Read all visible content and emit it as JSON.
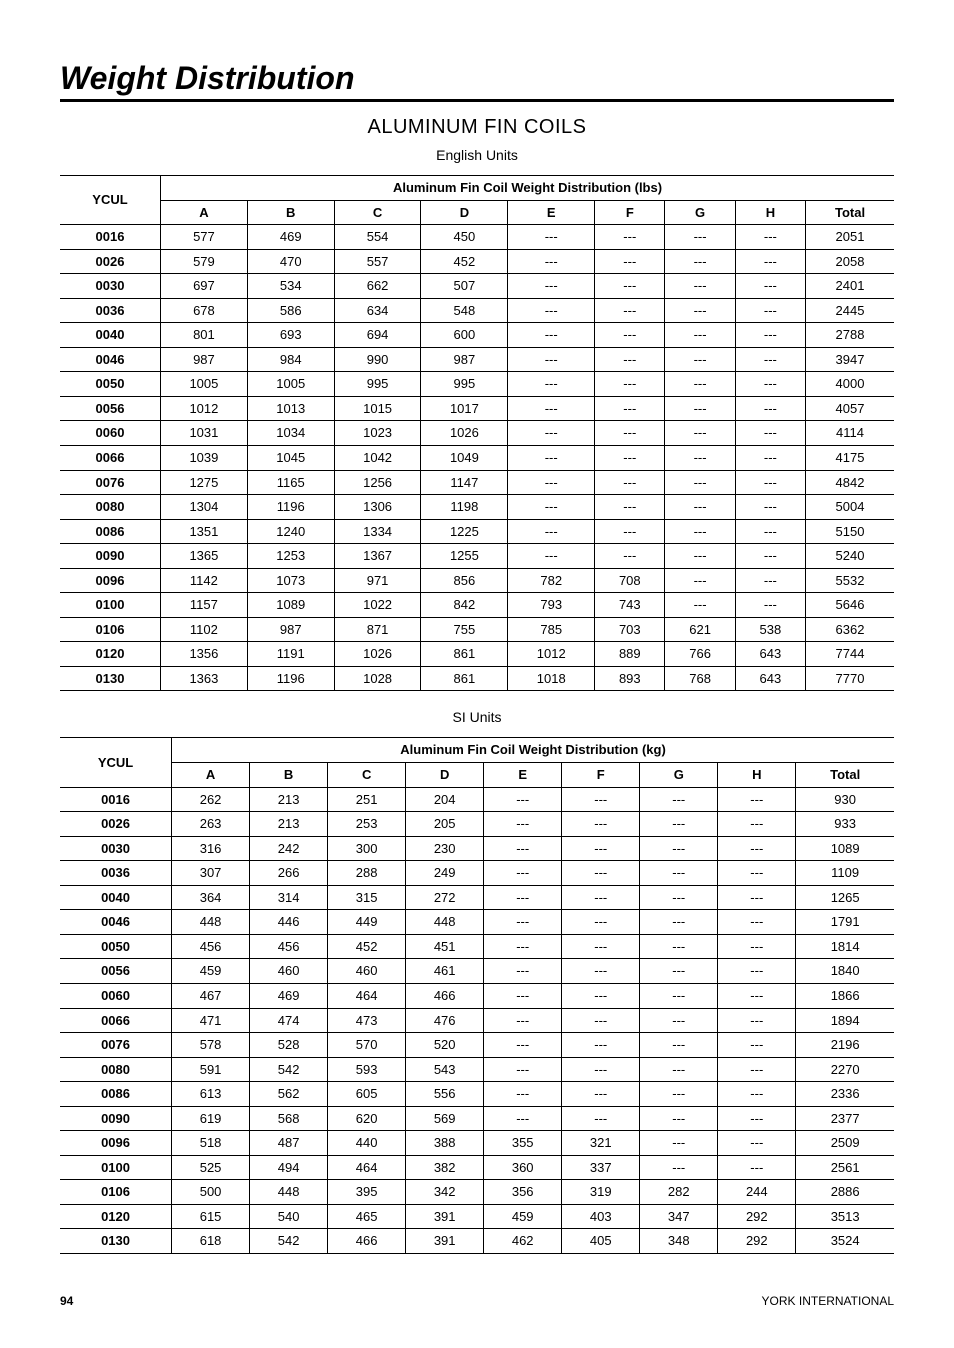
{
  "page_title": "Weight Distribution",
  "section_title": "ALUMINUM FIN COILS",
  "table1": {
    "units_label": "English Units",
    "ycul_header": "YCUL",
    "span_header": "Aluminum Fin Coil Weight Distribution (lbs)",
    "columns": [
      "A",
      "B",
      "C",
      "D",
      "E",
      "F",
      "G",
      "H",
      "Total"
    ],
    "rows": [
      [
        "0016",
        "577",
        "469",
        "554",
        "450",
        "---",
        "---",
        "---",
        "---",
        "2051"
      ],
      [
        "0026",
        "579",
        "470",
        "557",
        "452",
        "---",
        "---",
        "---",
        "---",
        "2058"
      ],
      [
        "0030",
        "697",
        "534",
        "662",
        "507",
        "---",
        "---",
        "---",
        "---",
        "2401"
      ],
      [
        "0036",
        "678",
        "586",
        "634",
        "548",
        "---",
        "---",
        "---",
        "---",
        "2445"
      ],
      [
        "0040",
        "801",
        "693",
        "694",
        "600",
        "---",
        "---",
        "---",
        "---",
        "2788"
      ],
      [
        "0046",
        "987",
        "984",
        "990",
        "987",
        "---",
        "---",
        "---",
        "---",
        "3947"
      ],
      [
        "0050",
        "1005",
        "1005",
        "995",
        "995",
        "---",
        "---",
        "---",
        "---",
        "4000"
      ],
      [
        "0056",
        "1012",
        "1013",
        "1015",
        "1017",
        "---",
        "---",
        "---",
        "---",
        "4057"
      ],
      [
        "0060",
        "1031",
        "1034",
        "1023",
        "1026",
        "---",
        "---",
        "---",
        "---",
        "4114"
      ],
      [
        "0066",
        "1039",
        "1045",
        "1042",
        "1049",
        "---",
        "---",
        "---",
        "---",
        "4175"
      ],
      [
        "0076",
        "1275",
        "1165",
        "1256",
        "1147",
        "---",
        "---",
        "---",
        "---",
        "4842"
      ],
      [
        "0080",
        "1304",
        "1196",
        "1306",
        "1198",
        "---",
        "---",
        "---",
        "---",
        "5004"
      ],
      [
        "0086",
        "1351",
        "1240",
        "1334",
        "1225",
        "---",
        "---",
        "---",
        "---",
        "5150"
      ],
      [
        "0090",
        "1365",
        "1253",
        "1367",
        "1255",
        "---",
        "---",
        "---",
        "---",
        "5240"
      ],
      [
        "0096",
        "1142",
        "1073",
        "971",
        "856",
        "782",
        "708",
        "---",
        "---",
        "5532"
      ],
      [
        "0100",
        "1157",
        "1089",
        "1022",
        "842",
        "793",
        "743",
        "---",
        "---",
        "5646"
      ],
      [
        "0106",
        "1102",
        "987",
        "871",
        "755",
        "785",
        "703",
        "621",
        "538",
        "6362"
      ],
      [
        "0120",
        "1356",
        "1191",
        "1026",
        "861",
        "1012",
        "889",
        "766",
        "643",
        "7744"
      ],
      [
        "0130",
        "1363",
        "1196",
        "1028",
        "861",
        "1018",
        "893",
        "768",
        "643",
        "7770"
      ]
    ]
  },
  "table2": {
    "units_label": "SI Units",
    "ycul_header": "YCUL",
    "span_header": "Aluminum Fin Coil Weight Distribution (kg)",
    "columns": [
      "A",
      "B",
      "C",
      "D",
      "E",
      "F",
      "G",
      "H",
      "Total"
    ],
    "rows": [
      [
        "0016",
        "262",
        "213",
        "251",
        "204",
        "---",
        "---",
        "---",
        "---",
        "930"
      ],
      [
        "0026",
        "263",
        "213",
        "253",
        "205",
        "---",
        "---",
        "---",
        "---",
        "933"
      ],
      [
        "0030",
        "316",
        "242",
        "300",
        "230",
        "---",
        "---",
        "---",
        "---",
        "1089"
      ],
      [
        "0036",
        "307",
        "266",
        "288",
        "249",
        "---",
        "---",
        "---",
        "---",
        "1109"
      ],
      [
        "0040",
        "364",
        "314",
        "315",
        "272",
        "---",
        "---",
        "---",
        "---",
        "1265"
      ],
      [
        "0046",
        "448",
        "446",
        "449",
        "448",
        "---",
        "---",
        "---",
        "---",
        "1791"
      ],
      [
        "0050",
        "456",
        "456",
        "452",
        "451",
        "---",
        "---",
        "---",
        "---",
        "1814"
      ],
      [
        "0056",
        "459",
        "460",
        "460",
        "461",
        "---",
        "---",
        "---",
        "---",
        "1840"
      ],
      [
        "0060",
        "467",
        "469",
        "464",
        "466",
        "---",
        "---",
        "---",
        "---",
        "1866"
      ],
      [
        "0066",
        "471",
        "474",
        "473",
        "476",
        "---",
        "---",
        "---",
        "---",
        "1894"
      ],
      [
        "0076",
        "578",
        "528",
        "570",
        "520",
        "---",
        "---",
        "---",
        "---",
        "2196"
      ],
      [
        "0080",
        "591",
        "542",
        "593",
        "543",
        "---",
        "---",
        "---",
        "---",
        "2270"
      ],
      [
        "0086",
        "613",
        "562",
        "605",
        "556",
        "---",
        "---",
        "---",
        "---",
        "2336"
      ],
      [
        "0090",
        "619",
        "568",
        "620",
        "569",
        "---",
        "---",
        "---",
        "---",
        "2377"
      ],
      [
        "0096",
        "518",
        "487",
        "440",
        "388",
        "355",
        "321",
        "---",
        "---",
        "2509"
      ],
      [
        "0100",
        "525",
        "494",
        "464",
        "382",
        "360",
        "337",
        "---",
        "---",
        "2561"
      ],
      [
        "0106",
        "500",
        "448",
        "395",
        "342",
        "356",
        "319",
        "282",
        "244",
        "2886"
      ],
      [
        "0120",
        "615",
        "540",
        "465",
        "391",
        "459",
        "403",
        "347",
        "292",
        "3513"
      ],
      [
        "0130",
        "618",
        "542",
        "466",
        "391",
        "462",
        "405",
        "348",
        "292",
        "3524"
      ]
    ]
  },
  "footer": {
    "page_number": "94",
    "company": "YORK INTERNATIONAL"
  }
}
